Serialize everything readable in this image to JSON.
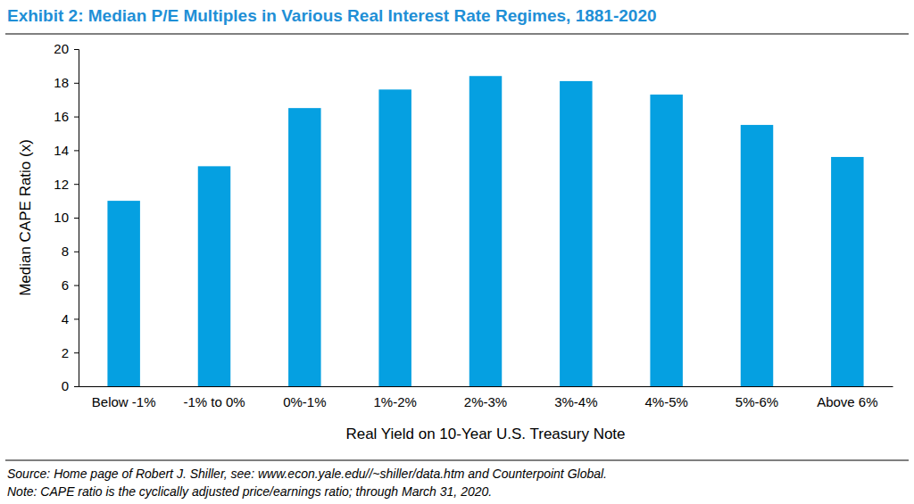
{
  "chart_data": {
    "type": "bar",
    "title": "Exhibit 2: Median P/E Multiples in Various Real Interest Rate Regimes, 1881-2020",
    "x_label": "Real Yield on 10-Year U.S. Treasury Note",
    "y_label": "Median CAPE Ratio (x)",
    "categories": [
      "Below -1%",
      "-1% to 0%",
      "0%-1%",
      "1%-2%",
      "2%-3%",
      "3%-4%",
      "4%-5%",
      "5%-6%",
      "Above 6%"
    ],
    "values": [
      11.0,
      13.05,
      16.5,
      17.6,
      18.4,
      18.1,
      17.3,
      15.5,
      13.6
    ],
    "color": "#05a0e1",
    "ylim": [
      0,
      20
    ],
    "yticks": [
      0,
      2,
      4,
      6,
      8,
      10,
      12,
      14,
      16,
      18,
      20
    ],
    "grid": false,
    "annotations": [
      "Source: Home page of Robert J. Shiller, see: www.econ.yale.edu//~shiller/data.htm and Counterpoint Global.",
      "Note: CAPE ratio is the cyclically adjusted price/earnings ratio; through March 31, 2020."
    ]
  }
}
